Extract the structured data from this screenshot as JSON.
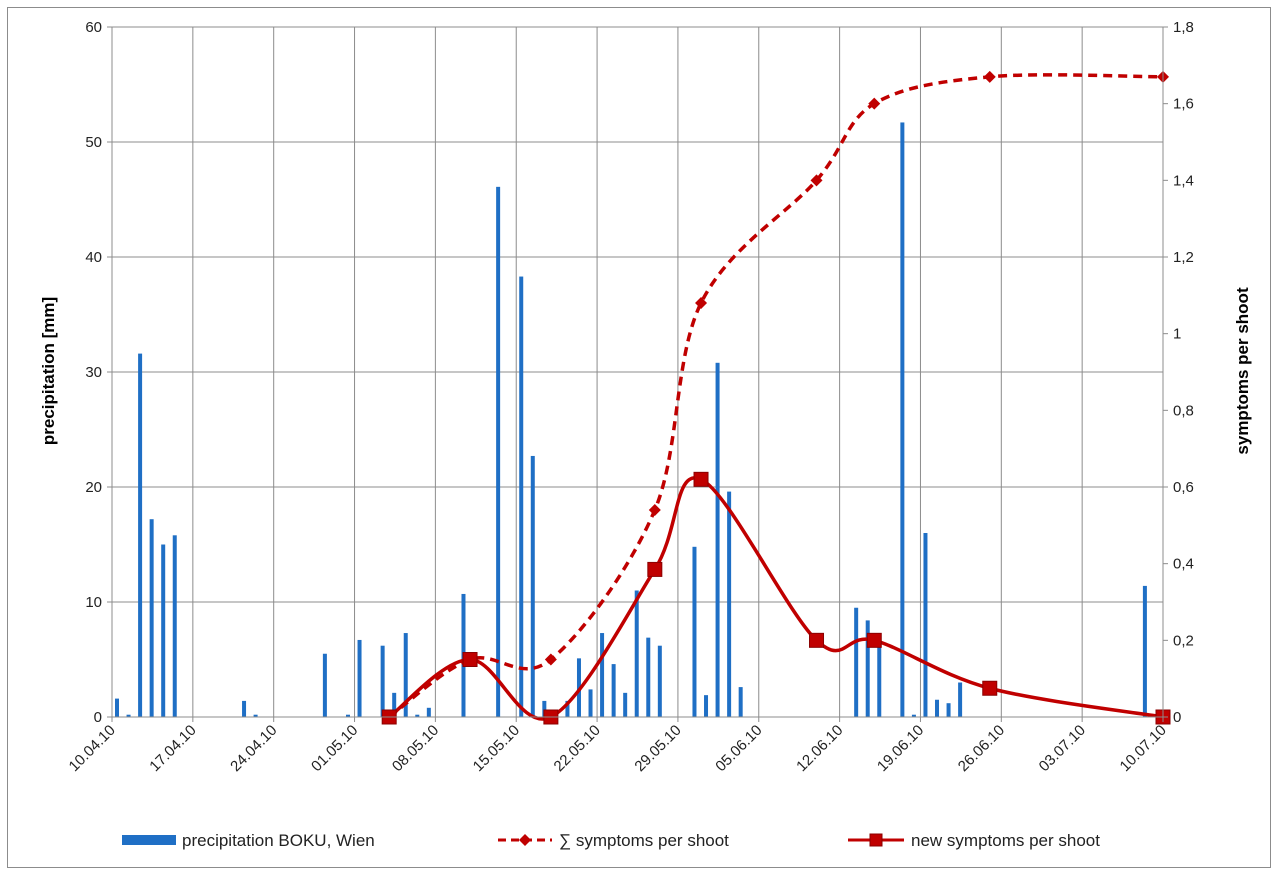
{
  "chart_data": {
    "type": "bar+line",
    "x_dates": [
      "10.04.10",
      "17.04.10",
      "24.04.10",
      "01.05.10",
      "08.05.10",
      "15.05.10",
      "22.05.10",
      "29.05.10",
      "05.06.10",
      "12.06.10",
      "19.06.10",
      "26.06.10",
      "03.07.10",
      "10.07.10"
    ],
    "y_left": {
      "label": "precipitation [mm]",
      "lim": [
        0,
        60
      ],
      "ticks": [
        "0",
        "10",
        "20",
        "30",
        "40",
        "50",
        "60"
      ]
    },
    "y_right": {
      "label": "symptoms per shoot",
      "lim": [
        0,
        1.8
      ],
      "ticks": [
        "0",
        "0,2",
        "0,4",
        "0,6",
        "0,8",
        "1",
        "1,2",
        "1,4",
        "1,6",
        "1,8"
      ]
    },
    "grid": true,
    "legend_position": "bottom",
    "bars": {
      "name": "precipitation BOKU, Wien",
      "color": "#1f6fc5",
      "points": [
        [
          "10.04.10",
          1.6
        ],
        [
          "11.04.10",
          0.2
        ],
        [
          "12.04.10",
          31.6
        ],
        [
          "13.04.10",
          17.2
        ],
        [
          "14.04.10",
          15.0
        ],
        [
          "15.04.10",
          15.8
        ],
        [
          "21.04.10",
          1.4
        ],
        [
          "22.04.10",
          0.2
        ],
        [
          "28.04.10",
          5.5
        ],
        [
          "30.04.10",
          0.2
        ],
        [
          "01.05.10",
          6.7
        ],
        [
          "03.05.10",
          6.2
        ],
        [
          "04.05.10",
          2.1
        ],
        [
          "05.05.10",
          7.3
        ],
        [
          "06.05.10",
          0.2
        ],
        [
          "07.05.10",
          0.8
        ],
        [
          "10.05.10",
          10.7
        ],
        [
          "13.05.10",
          46.1
        ],
        [
          "15.05.10",
          38.3
        ],
        [
          "16.05.10",
          22.7
        ],
        [
          "17.05.10",
          1.4
        ],
        [
          "19.05.10",
          1.4
        ],
        [
          "20.05.10",
          5.1
        ],
        [
          "21.05.10",
          2.4
        ],
        [
          "22.05.10",
          7.3
        ],
        [
          "23.05.10",
          4.6
        ],
        [
          "24.05.10",
          2.1
        ],
        [
          "25.05.10",
          11.0
        ],
        [
          "26.05.10",
          6.9
        ],
        [
          "27.05.10",
          6.2
        ],
        [
          "30.05.10",
          14.8
        ],
        [
          "31.05.10",
          1.9
        ],
        [
          "01.06.10",
          30.8
        ],
        [
          "02.06.10",
          19.6
        ],
        [
          "03.06.10",
          2.6
        ],
        [
          "13.06.10",
          9.5
        ],
        [
          "14.06.10",
          8.4
        ],
        [
          "15.06.10",
          6.3
        ],
        [
          "17.06.10",
          51.7
        ],
        [
          "18.06.10",
          0.2
        ],
        [
          "19.06.10",
          16.0
        ],
        [
          "20.06.10",
          1.5
        ],
        [
          "21.06.10",
          1.2
        ],
        [
          "22.06.10",
          3.0
        ],
        [
          "08.07.10",
          11.4
        ]
      ]
    },
    "series": [
      {
        "name": "∑ symptoms per shoot",
        "style": "dashed",
        "marker": "diamond",
        "color": "#c00000",
        "points": [
          [
            "04.05.10",
            0.0
          ],
          [
            "11.05.10",
            0.15
          ],
          [
            "18.05.10",
            0.15
          ],
          [
            "27.05.10",
            0.54
          ],
          [
            "31.05.10",
            1.08
          ],
          [
            "10.06.10",
            1.4
          ],
          [
            "15.06.10",
            1.6
          ],
          [
            "25.06.10",
            1.67
          ],
          [
            "10.07.10",
            1.67
          ]
        ]
      },
      {
        "name": "new symptoms per shoot",
        "style": "solid",
        "marker": "square",
        "color": "#c00000",
        "points": [
          [
            "04.05.10",
            0.0
          ],
          [
            "11.05.10",
            0.15
          ],
          [
            "18.05.10",
            0.0
          ],
          [
            "27.05.10",
            0.385
          ],
          [
            "31.05.10",
            0.62
          ],
          [
            "10.06.10",
            0.2
          ],
          [
            "15.06.10",
            0.2
          ],
          [
            "25.06.10",
            0.075
          ],
          [
            "10.07.10",
            0.0
          ]
        ]
      }
    ]
  }
}
